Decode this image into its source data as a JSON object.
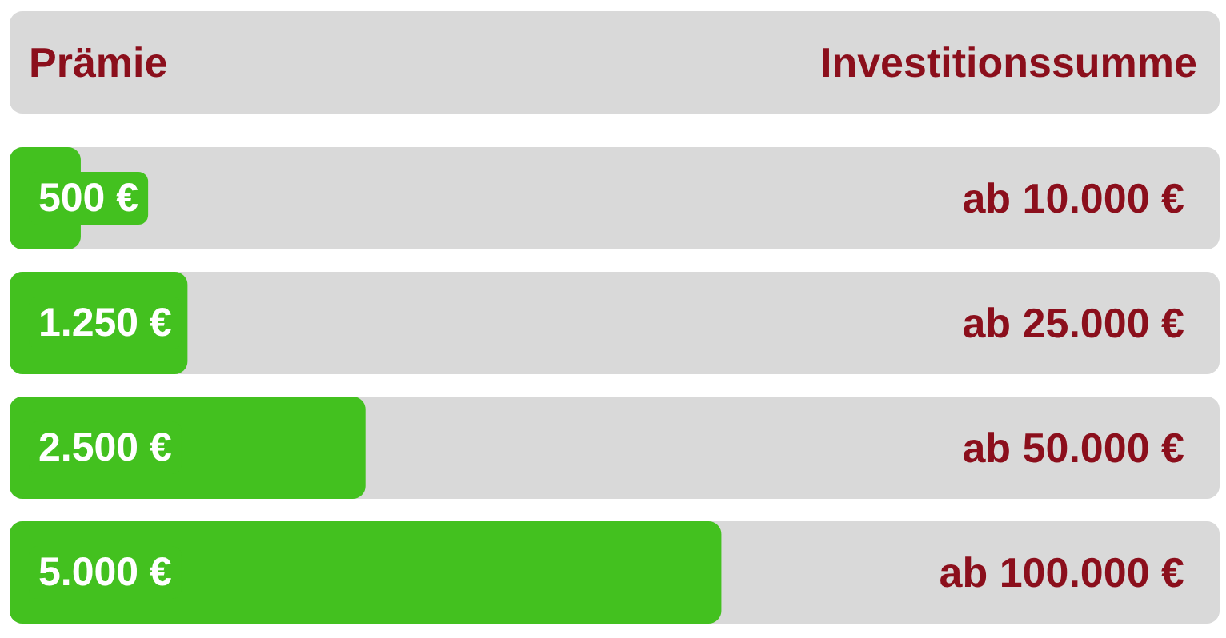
{
  "chart_data": {
    "type": "bar",
    "orientation": "horizontal",
    "xlabel": "Prämie",
    "ylabel": "Investitionssumme",
    "categories": [
      "ab 10.000 €",
      "ab 25.000 €",
      "ab 50.000 €",
      "ab 100.000 €"
    ],
    "values": [
      500,
      1250,
      2500,
      5000
    ],
    "value_labels": [
      "500 €",
      "1.250 €",
      "2.500 €",
      "5.000 €"
    ],
    "color": "#43c11f"
  }
}
